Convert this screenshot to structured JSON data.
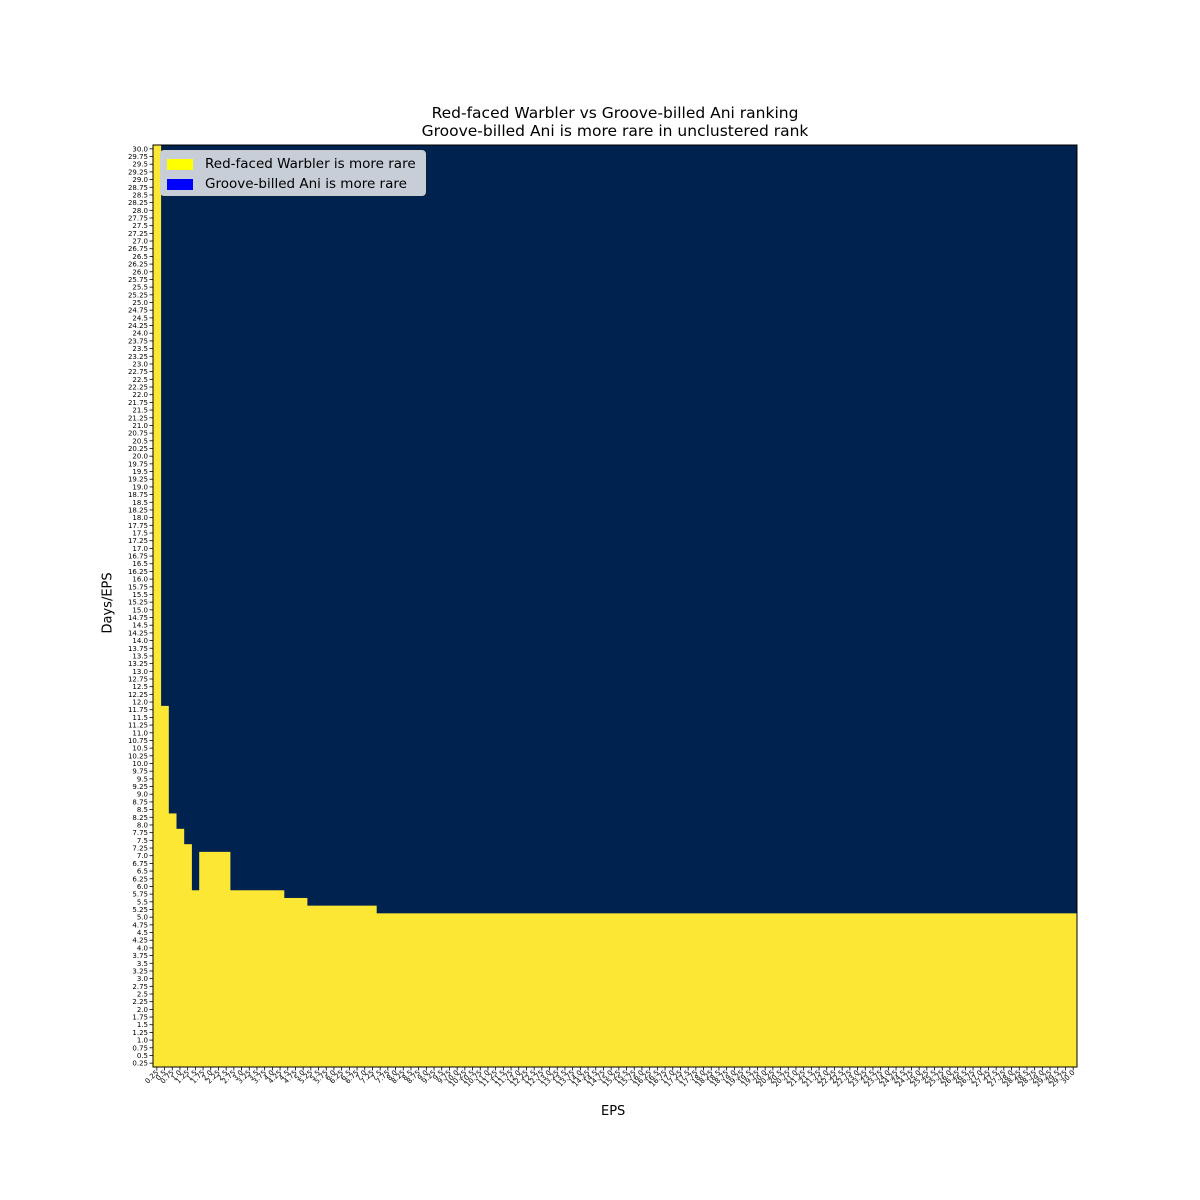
{
  "chart_data": {
    "type": "heatmap",
    "title": "Red-faced Warbler vs Groove-billed Ani ranking",
    "subtitle": "Groove-billed Ani is more rare in unclustered rank",
    "xlabel": "EPS",
    "ylabel": "Days/EPS",
    "x_range": [
      0.25,
      30.0
    ],
    "x_step": 0.25,
    "y_range": [
      0.25,
      30.0
    ],
    "y_step": 0.25,
    "colors": {
      "red_faced_more_rare": "#fde735",
      "groove_billed_more_rare": "#00224e"
    },
    "legend": [
      {
        "label": "Red-faced Warbler is more rare",
        "color": "#ffff00"
      },
      {
        "label": "Groove-billed Ani is more rare",
        "color": "#0000ff"
      }
    ],
    "legend_position": "upper-left",
    "boundary": {
      "description": "For each EPS range, cells with Days/EPS <= max_days are Red-faced Warbler is more rare; above are Groove-billed Ani is more rare",
      "segments": [
        {
          "eps_from": 0.25,
          "eps_to": 0.25,
          "max_days": 30.0
        },
        {
          "eps_from": 0.5,
          "eps_to": 0.5,
          "max_days": 11.75
        },
        {
          "eps_from": 0.75,
          "eps_to": 0.75,
          "max_days": 8.25
        },
        {
          "eps_from": 1.0,
          "eps_to": 1.0,
          "max_days": 7.75
        },
        {
          "eps_from": 1.25,
          "eps_to": 1.25,
          "max_days": 7.25
        },
        {
          "eps_from": 1.5,
          "eps_to": 1.5,
          "max_days": 5.75
        },
        {
          "eps_from": 1.75,
          "eps_to": 2.5,
          "max_days": 7.0
        },
        {
          "eps_from": 2.75,
          "eps_to": 4.25,
          "max_days": 5.75
        },
        {
          "eps_from": 4.5,
          "eps_to": 5.0,
          "max_days": 5.5
        },
        {
          "eps_from": 5.25,
          "eps_to": 7.25,
          "max_days": 5.25
        },
        {
          "eps_from": 7.5,
          "eps_to": 30.0,
          "max_days": 5.0
        }
      ]
    }
  }
}
